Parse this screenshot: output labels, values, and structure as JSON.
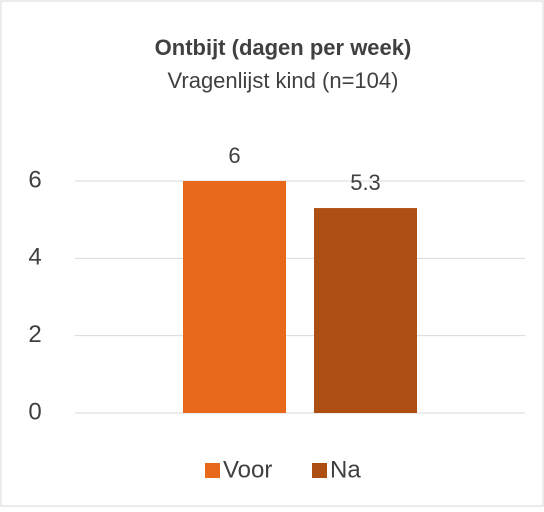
{
  "chart_data": {
    "type": "bar",
    "title": "Ontbijt (dagen per week)",
    "subtitle": "Vragenlijst kind (n=104)",
    "categories": [
      null
    ],
    "series": [
      {
        "name": "Voor",
        "color": "#e8681c",
        "values": [
          6
        ]
      },
      {
        "name": "Na",
        "color": "#ad4f12",
        "values": [
          5.3
        ]
      }
    ],
    "ylim": [
      0,
      6
    ],
    "yticks": [
      0,
      2,
      4,
      6
    ],
    "grid": true,
    "legend": "bottom"
  }
}
